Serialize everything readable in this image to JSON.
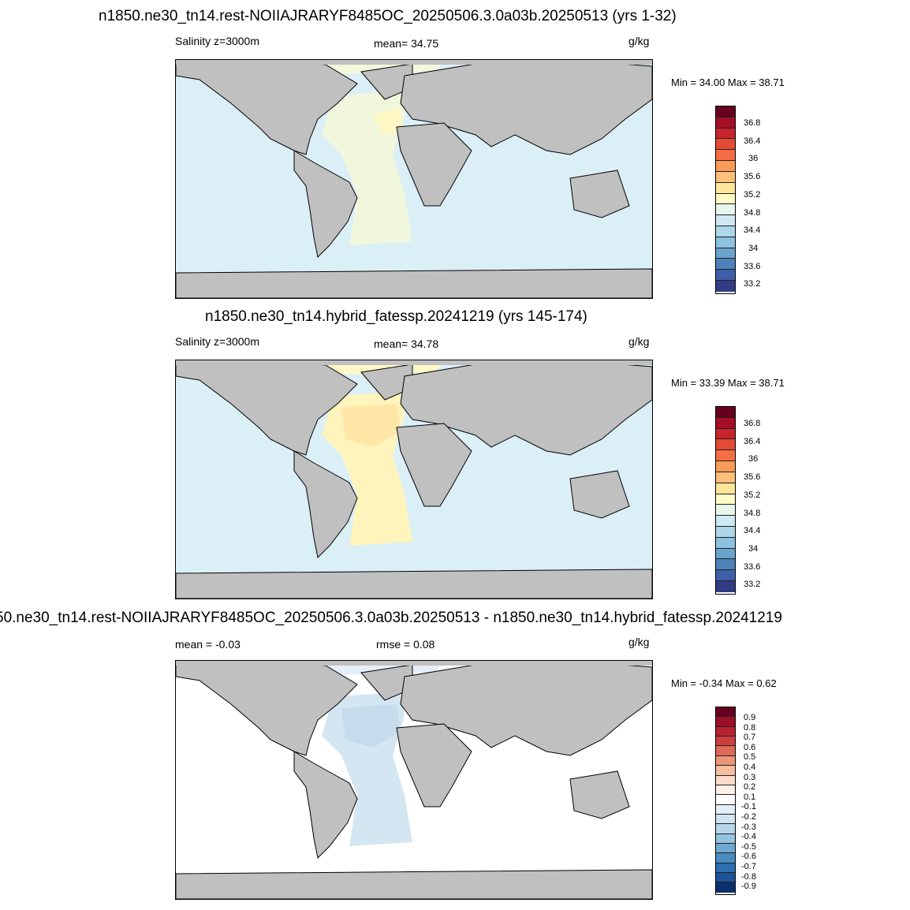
{
  "panels": [
    {
      "title": "n1850.ne30_tn14.rest-NOIIAJRARYF8485OC_20250506.3.0a03b.20250513 (yrs 1-32)",
      "left_label": "Salinity z=3000m",
      "center_label": "mean=  34.75",
      "units": "g/kg",
      "minmax": "Min =  34.00 Max =  38.71",
      "colors": {
        "land": "#c0c0c0",
        "ocean": "#dbeff7",
        "atlantic": "#f0f7dd",
        "arctic": "#f3f8dd",
        "nearshore": "#fff7c4"
      },
      "colorbar_labels": [
        "36.8",
        "36.4",
        "36",
        "35.6",
        "35.2",
        "34.8",
        "34.4",
        "34",
        "33.6",
        "33.2"
      ]
    },
    {
      "title": "n1850.ne30_tn14.hybrid_fatessp.20241219 (yrs 145-174)",
      "left_label": "Salinity z=3000m",
      "center_label": "mean=  34.78",
      "units": "g/kg",
      "minmax": "Min =  33.39 Max =  38.71",
      "colors": {
        "land": "#c0c0c0",
        "ocean": "#dbeff7",
        "atlantic": "#fff4bb",
        "arctic": "#fff8c6",
        "nearshore": "#fee7a6"
      },
      "colorbar_labels": [
        "36.8",
        "36.4",
        "36",
        "35.6",
        "35.2",
        "34.8",
        "34.4",
        "34",
        "33.6",
        "33.2"
      ]
    },
    {
      "title": "50.ne30_tn14.rest-NOIIAJRARYF8485OC_20250506.3.0a03b.20250513 - n1850.ne30_tn14.hybrid_fatessp.20241219",
      "left_label": "mean =  -0.03",
      "center_label": "rmse =    0.08",
      "units": "g/kg",
      "minmax": "Min =  -0.34 Max =   0.62",
      "colors": {
        "land": "#c0c0c0",
        "ocean": "#ffffff",
        "atlantic": "#d4e6f1",
        "arctic": "#e6eff7",
        "nearshore": "#c6dcec"
      },
      "colorbar_labels": [
        "0.9",
        "0.8",
        "0.7",
        "0.6",
        "0.5",
        "0.4",
        "0.3",
        "0.2",
        "0.1",
        "-0.1",
        "-0.2",
        "-0.3",
        "-0.4",
        "-0.5",
        "-0.6",
        "-0.7",
        "-0.8",
        "-0.9"
      ]
    }
  ],
  "salinity_colorbar_colors": [
    "#67001f",
    "#a50f26",
    "#c8242d",
    "#e34a33",
    "#f46d43",
    "#f99b58",
    "#fcc07a",
    "#fee59a",
    "#fffbc4",
    "#e8f6ec",
    "#cfe9f2",
    "#aed7e9",
    "#8cc1df",
    "#6aa3cd",
    "#4d82bb",
    "#3e5ea7",
    "#323b84"
  ],
  "diff_colorbar_colors": [
    "#67001f",
    "#9b0f27",
    "#b7222f",
    "#cc3f3e",
    "#dd6a55",
    "#ec9577",
    "#f6bd9f",
    "#fbdcc8",
    "#fff0e8",
    "#ffffff",
    "#e6eff7",
    "#d1e3f0",
    "#b8d6ea",
    "#94c3df",
    "#6fa8d0",
    "#4a8bc2",
    "#2f6eb0",
    "#1c5499",
    "#08306b"
  ]
}
